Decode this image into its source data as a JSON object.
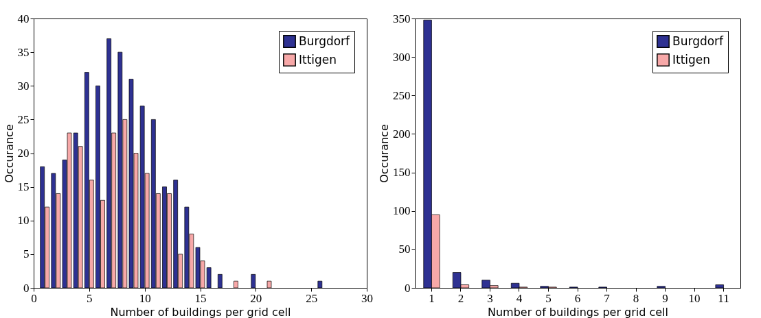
{
  "chart_data": [
    {
      "type": "bar",
      "xlabel": "Number of buildings per grid cell",
      "ylabel": "Occurance",
      "x": [
        1,
        2,
        3,
        4,
        5,
        6,
        7,
        8,
        9,
        10,
        11,
        12,
        13,
        14,
        15,
        16,
        17,
        18,
        19,
        20,
        21,
        22,
        23,
        24,
        25,
        26
      ],
      "series": [
        {
          "name": "Burgdorf",
          "color": "#2e3192",
          "values": [
            18,
            17,
            19,
            23,
            32,
            30,
            37,
            35,
            31,
            27,
            25,
            15,
            16,
            12,
            6,
            3,
            2,
            0,
            0,
            2,
            0,
            0,
            0,
            0,
            0,
            1
          ]
        },
        {
          "name": "Ittigen",
          "color": "#f7a8a8",
          "values": [
            12,
            14,
            23,
            21,
            16,
            13,
            23,
            25,
            20,
            17,
            14,
            14,
            5,
            8,
            4,
            0,
            0,
            1,
            0,
            0,
            1,
            0,
            0,
            0,
            0,
            0
          ]
        }
      ],
      "xlim": [
        0,
        30
      ],
      "xticks": [
        0,
        5,
        10,
        15,
        20,
        25,
        30
      ],
      "ylim": [
        0,
        40
      ],
      "yticks": [
        0,
        5,
        10,
        15,
        20,
        25,
        30,
        35,
        40
      ],
      "grid": false,
      "legend": "top right"
    },
    {
      "type": "bar",
      "xlabel": "Number of buildings per grid cell",
      "ylabel": "Occurance",
      "categories": [
        "1",
        "2",
        "3",
        "4",
        "5",
        "6",
        "7",
        "8",
        "9",
        "10",
        "11"
      ],
      "series": [
        {
          "name": "Burgdorf",
          "color": "#2e3192",
          "values": [
            348,
            20,
            10,
            6,
            2,
            1,
            1,
            0,
            2,
            0,
            4
          ]
        },
        {
          "name": "Ittigen",
          "color": "#f7a8a8",
          "values": [
            95,
            4,
            3,
            1,
            1,
            0,
            0,
            0,
            0,
            0,
            0
          ]
        }
      ],
      "ylim": [
        0,
        350
      ],
      "yticks": [
        0,
        50,
        100,
        150,
        200,
        250,
        300,
        350
      ],
      "grid": false,
      "legend": "top right"
    }
  ]
}
